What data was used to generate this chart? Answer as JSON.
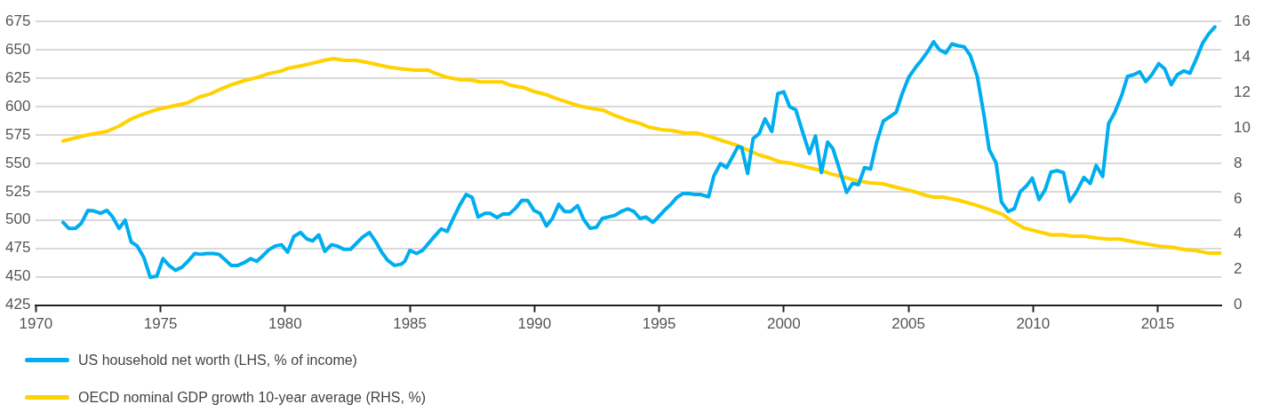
{
  "chart_data": {
    "type": "line",
    "legend": "bottom",
    "grid": "y",
    "marker": "none",
    "line_style": "solid",
    "xlim": [
      1970,
      2017.55
    ],
    "xticks": [
      1970,
      1975,
      1980,
      1985,
      1990,
      1995,
      2000,
      2005,
      2010,
      2015
    ],
    "ylim": [
      425,
      675
    ],
    "yticks": [
      425,
      450,
      475,
      500,
      525,
      550,
      575,
      600,
      625,
      650,
      675
    ],
    "y2lim": [
      0,
      16
    ],
    "y2ticks": [
      0,
      2,
      4,
      6,
      8,
      10,
      12,
      14,
      16
    ],
    "series": [
      {
        "name": "US household net worth (LHS, % of income)",
        "color": "#00aeef",
        "x": [
          1971.09,
          1971.33,
          1971.58,
          1971.82,
          1972.09,
          1972.33,
          1972.6,
          1972.85,
          1973.07,
          1973.34,
          1973.58,
          1973.82,
          1974.07,
          1974.33,
          1974.59,
          1974.85,
          1975.1,
          1975.34,
          1975.6,
          1975.86,
          1976.1,
          1976.37,
          1976.61,
          1976.86,
          1977.1,
          1977.34,
          1977.58,
          1977.83,
          1978.1,
          1978.37,
          1978.62,
          1978.86,
          1979.1,
          1979.34,
          1979.59,
          1979.85,
          1980.1,
          1980.35,
          1980.62,
          1980.86,
          1981.1,
          1981.35,
          1981.59,
          1981.86,
          1982.1,
          1982.35,
          1982.62,
          1982.86,
          1983.1,
          1983.38,
          1983.63,
          1983.87,
          1984.11,
          1984.38,
          1984.65,
          1984.8,
          1985.0,
          1985.27,
          1985.51,
          1985.75,
          1985.99,
          1986.26,
          1986.5,
          1986.74,
          1987.02,
          1987.26,
          1987.5,
          1987.74,
          1988.02,
          1988.22,
          1988.5,
          1988.74,
          1988.99,
          1989.23,
          1989.49,
          1989.73,
          1989.98,
          1990.22,
          1990.48,
          1990.72,
          1990.97,
          1991.21,
          1991.45,
          1991.73,
          1991.97,
          1992.23,
          1992.48,
          1992.72,
          1992.96,
          1993.21,
          1993.48,
          1993.74,
          1993.99,
          1994.23,
          1994.47,
          1994.75,
          1994.95,
          1995.19,
          1995.47,
          1995.71,
          1995.95,
          1996.2,
          1996.44,
          1996.68,
          1996.98,
          1997.2,
          1997.46,
          1997.71,
          1997.95,
          1998.16,
          1998.31,
          1998.55,
          1998.77,
          1999.01,
          1999.25,
          1999.52,
          1999.76,
          2000.0,
          2000.24,
          2000.48,
          2000.75,
          2001.03,
          2001.27,
          2001.51,
          2001.76,
          2001.97,
          2002.25,
          2002.52,
          2002.76,
          2003.0,
          2003.24,
          2003.48,
          2003.72,
          2003.99,
          2004.26,
          2004.51,
          2004.75,
          2005.02,
          2005.29,
          2005.53,
          2005.77,
          2006.01,
          2006.25,
          2006.5,
          2006.74,
          2007.0,
          2007.24,
          2007.48,
          2007.76,
          2008.04,
          2008.24,
          2008.52,
          2008.73,
          2009.0,
          2009.25,
          2009.49,
          2009.75,
          2009.97,
          2010.24,
          2010.48,
          2010.72,
          2010.96,
          2011.22,
          2011.47,
          2011.71,
          2012.04,
          2012.29,
          2012.53,
          2012.79,
          2013.03,
          2013.27,
          2013.55,
          2013.79,
          2014.03,
          2014.28,
          2014.52,
          2014.76,
          2015.04,
          2015.28,
          2015.54,
          2015.78,
          2016.05,
          2016.29,
          2016.53,
          2016.81,
          2017.05,
          2017.29
        ],
        "values": [
          498,
          492.5,
          492.5,
          497,
          508.5,
          508,
          506,
          508.5,
          503,
          492.5,
          500,
          480.8,
          477,
          467,
          449.5,
          450.5,
          466,
          460,
          455.7,
          458.4,
          463.6,
          470.5,
          469.8,
          470.5,
          470.5,
          469.8,
          465.2,
          460,
          460,
          462.6,
          466,
          463.6,
          468.4,
          473.7,
          477,
          478.2,
          471.6,
          485.6,
          489,
          483.4,
          481.6,
          486.9,
          472.4,
          478.2,
          477,
          474.2,
          474.2,
          479.5,
          484.8,
          489,
          481,
          471.6,
          464.5,
          460,
          461,
          463.6,
          473.2,
          470.5,
          473.2,
          479.5,
          485.6,
          492.2,
          490,
          501.4,
          513.8,
          522.5,
          519.9,
          502.7,
          505.9,
          505.9,
          502.2,
          505.4,
          505.4,
          510.1,
          517.2,
          517.2,
          508.5,
          505.9,
          494.8,
          501.4,
          513.8,
          507.5,
          507.5,
          512.7,
          500.6,
          492.7,
          493.5,
          501.4,
          502.7,
          504,
          507.5,
          509.8,
          507.5,
          501.4,
          502.7,
          498,
          502.2,
          508,
          513.8,
          519.9,
          523.3,
          523.3,
          522.5,
          522.5,
          520.4,
          539.1,
          549.7,
          546.2,
          556,
          564.7,
          564,
          541,
          571.8,
          576,
          589.2,
          578,
          611.4,
          613,
          599.8,
          597.2,
          578,
          558.6,
          574,
          541.8,
          568.7,
          562.9,
          543.6,
          524.3,
          532.3,
          531.2,
          546.2,
          544.9,
          568.1,
          587.1,
          591.1,
          595,
          611.4,
          626.2,
          634.6,
          641.2,
          648.4,
          657.1,
          649.9,
          647.3,
          655.2,
          653.6,
          652.6,
          645.2,
          626.7,
          591.1,
          562.1,
          550.2,
          515.9,
          507.5,
          510.1,
          525.1,
          530.4,
          537,
          518,
          526.5,
          542.3,
          543.6,
          541.8,
          516.4,
          523.8,
          537.5,
          532.3,
          548.1,
          538.3,
          585,
          594.5,
          609.6,
          626.7,
          628,
          630.7,
          622,
          628,
          637.8,
          633.3,
          619.3,
          628,
          631.5,
          629.4,
          641.2,
          656.3,
          664.2,
          670.2
        ]
      },
      {
        "name": "OECD nominal GDP growth 10-year average (RHS, %)",
        "color": "#ffd200",
        "axis": "y2",
        "x": [
          1971.09,
          1972.06,
          1972.85,
          1973.34,
          1973.82,
          1974.31,
          1974.85,
          1975.52,
          1976.07,
          1976.55,
          1976.98,
          1977.4,
          1977.83,
          1978.31,
          1978.92,
          1979.34,
          1979.83,
          1980.13,
          1980.62,
          1981.1,
          1981.59,
          1981.95,
          1982.38,
          1982.86,
          1983.29,
          1983.77,
          1984.26,
          1984.75,
          1985.23,
          1985.69,
          1985.99,
          1986.47,
          1987.02,
          1987.5,
          1987.8,
          1988.71,
          1989.01,
          1989.61,
          1989.98,
          1990.46,
          1990.82,
          1991.3,
          1991.79,
          1992.39,
          1992.75,
          1993.24,
          1993.72,
          1994.2,
          1994.57,
          1995.17,
          1995.53,
          1996.01,
          1996.5,
          1997.1,
          1997.58,
          1998.07,
          1998.55,
          1999.03,
          1999.4,
          1999.88,
          2000.24,
          2000.72,
          2001.45,
          2001.93,
          2002.15,
          2003.0,
          2003.48,
          2003.96,
          2004.57,
          2005.29,
          2005.65,
          2006.01,
          2006.37,
          2006.98,
          2007.7,
          2008.18,
          2008.79,
          2009.15,
          2009.63,
          2010.11,
          2010.72,
          2011.2,
          2011.56,
          2012.04,
          2012.53,
          2013.01,
          2013.49,
          2013.97,
          2014.46,
          2015.06,
          2015.66,
          2016.15,
          2016.51,
          2016.99,
          2017.53
        ],
        "values": [
          9.26,
          9.6,
          9.8,
          10.1,
          10.5,
          10.78,
          11.03,
          11.24,
          11.4,
          11.74,
          11.91,
          12.18,
          12.42,
          12.64,
          12.86,
          13.06,
          13.2,
          13.37,
          13.49,
          13.65,
          13.82,
          13.91,
          13.81,
          13.81,
          13.69,
          13.54,
          13.4,
          13.32,
          13.25,
          13.27,
          13.1,
          12.86,
          12.72,
          12.69,
          12.59,
          12.59,
          12.42,
          12.25,
          12.05,
          11.88,
          11.68,
          11.46,
          11.24,
          11.07,
          11.0,
          10.69,
          10.44,
          10.27,
          10.05,
          9.88,
          9.85,
          9.71,
          9.71,
          9.48,
          9.26,
          9.04,
          8.75,
          8.46,
          8.32,
          8.07,
          8.02,
          7.85,
          7.61,
          7.39,
          7.31,
          7.0,
          6.89,
          6.84,
          6.63,
          6.38,
          6.21,
          6.09,
          6.09,
          5.93,
          5.65,
          5.42,
          5.11,
          4.74,
          4.35,
          4.18,
          3.96,
          3.96,
          3.89,
          3.89,
          3.79,
          3.72,
          3.72,
          3.59,
          3.47,
          3.33,
          3.25,
          3.11,
          3.08,
          2.94,
          2.94
        ]
      }
    ]
  }
}
